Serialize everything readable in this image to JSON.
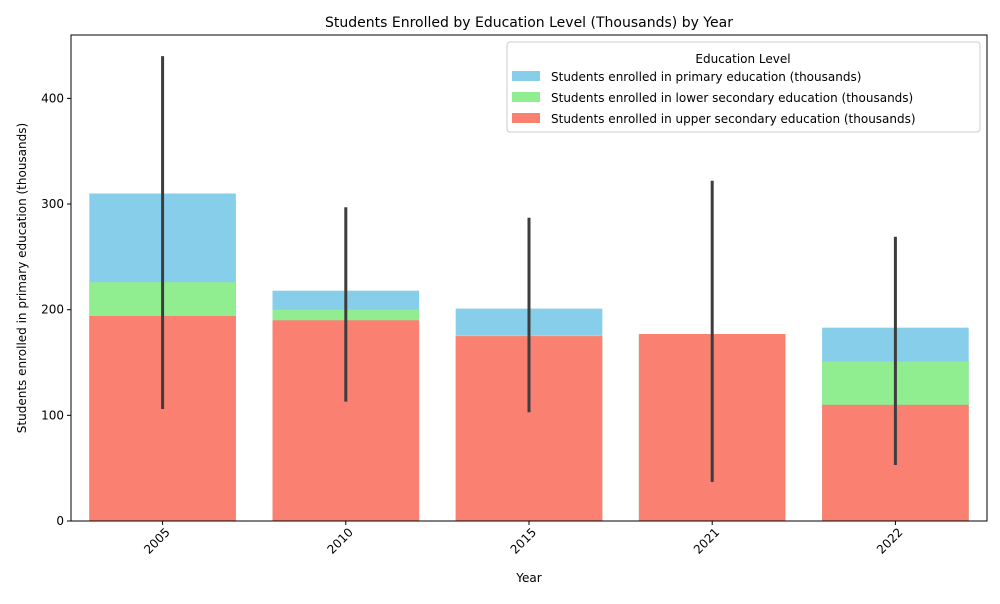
{
  "chart_data": {
    "type": "bar",
    "title": "Students Enrolled by Education Level (Thousands) by Year",
    "xlabel": "Year",
    "ylabel": "Students enrolled in primary education (thousands)",
    "categories": [
      "2005",
      "2010",
      "2015",
      "2021",
      "2022"
    ],
    "ylim": [
      0,
      460
    ],
    "yticks": [
      0,
      100,
      200,
      300,
      400
    ],
    "grid": false,
    "legend": {
      "title": "Education Level",
      "placement": "top-right"
    },
    "series": [
      {
        "name": "Students enrolled in primary education (thousands)",
        "color": "#87ceeb",
        "values": [
          310,
          218,
          201,
          176,
          183
        ]
      },
      {
        "name": "Students enrolled in lower secondary education (thousands)",
        "color": "#90ee90",
        "values": [
          226,
          200,
          176,
          176,
          151
        ]
      },
      {
        "name": "Students enrolled in upper secondary education (thousands)",
        "color": "#fa8072",
        "values": [
          194,
          190,
          175,
          177,
          110
        ]
      }
    ],
    "error_bars": [
      {
        "category": "2005",
        "low": 106,
        "high": 440
      },
      {
        "category": "2010",
        "low": 113,
        "high": 297
      },
      {
        "category": "2015",
        "low": 103,
        "high": 287
      },
      {
        "category": "2021",
        "low": 37,
        "high": 322
      },
      {
        "category": "2022",
        "low": 53,
        "high": 269
      }
    ]
  }
}
